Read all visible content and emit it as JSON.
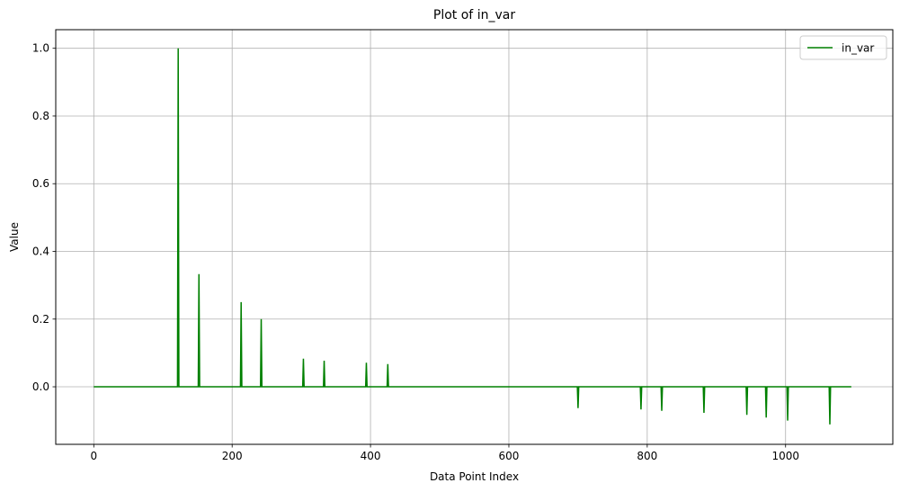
{
  "chart_data": {
    "type": "line",
    "title": "Plot of in_var",
    "xlabel": "Data Point Index",
    "ylabel": "Value",
    "xlim": [
      -55,
      1155
    ],
    "ylim": [
      -0.17,
      1.055
    ],
    "xticks": [
      0,
      200,
      400,
      600,
      800,
      1000
    ],
    "yticks": [
      -0.0,
      0.2,
      0.4,
      0.6,
      0.8,
      1.0
    ],
    "xtick_labels": [
      "0",
      "200",
      "400",
      "600",
      "800",
      "1000"
    ],
    "ytick_labels": [
      "0.0",
      "0.2",
      "0.4",
      "0.6",
      "0.8",
      "1.0"
    ],
    "grid": true,
    "legend_position": "top-right",
    "x_range": [
      0,
      1095
    ],
    "baseline": 0.0,
    "series": [
      {
        "name": "in_var",
        "color": "#008000",
        "spikes": [
          {
            "x": 122,
            "y": 1.0
          },
          {
            "x": 152,
            "y": 0.333
          },
          {
            "x": 213,
            "y": 0.25
          },
          {
            "x": 242,
            "y": 0.2
          },
          {
            "x": 303,
            "y": 0.083
          },
          {
            "x": 333,
            "y": 0.077
          },
          {
            "x": 394,
            "y": 0.071
          },
          {
            "x": 425,
            "y": 0.067
          },
          {
            "x": 700,
            "y": -0.063
          },
          {
            "x": 791,
            "y": -0.067
          },
          {
            "x": 821,
            "y": -0.071
          },
          {
            "x": 882,
            "y": -0.077
          },
          {
            "x": 944,
            "y": -0.083
          },
          {
            "x": 972,
            "y": -0.091
          },
          {
            "x": 1003,
            "y": -0.1
          },
          {
            "x": 1064,
            "y": -0.111
          }
        ]
      }
    ]
  }
}
